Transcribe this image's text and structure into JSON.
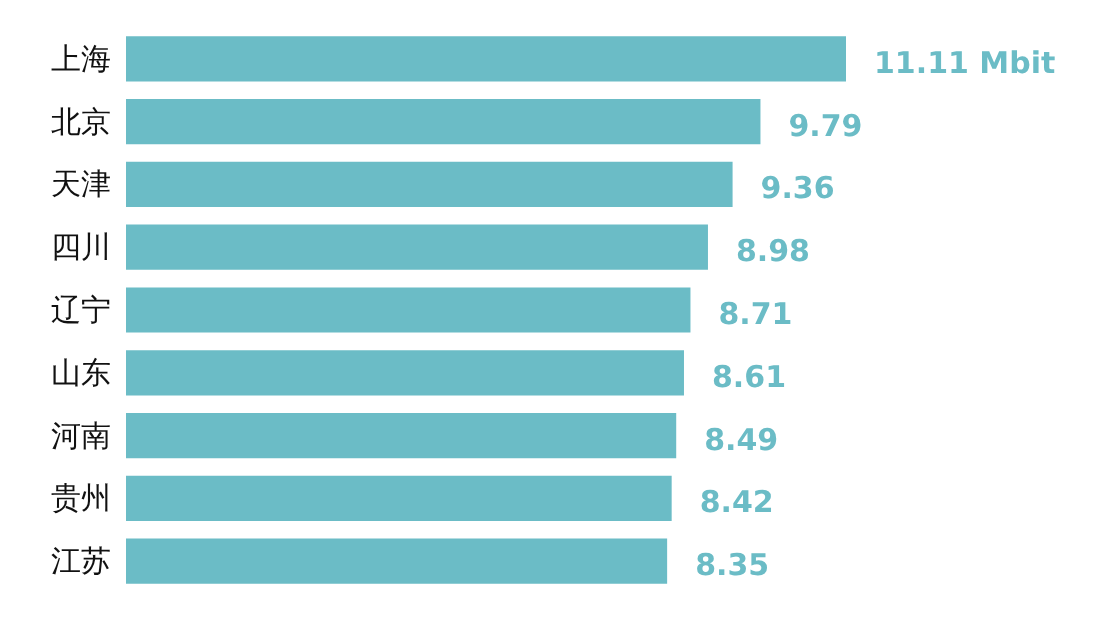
{
  "chart_data": {
    "type": "bar",
    "orientation": "horizontal",
    "categories": [
      "上海",
      "北京",
      "天津",
      "四川",
      "辽宁",
      "山东",
      "河南",
      "贵州",
      "江苏"
    ],
    "values": [
      11.11,
      9.79,
      9.36,
      8.98,
      8.71,
      8.61,
      8.49,
      8.42,
      8.35
    ],
    "value_labels": [
      "11.11 Mbit",
      "9.79",
      "9.36",
      "8.98",
      "8.71",
      "8.61",
      "8.49",
      "8.42",
      "8.35"
    ],
    "color": "#6bbcc6"
  }
}
